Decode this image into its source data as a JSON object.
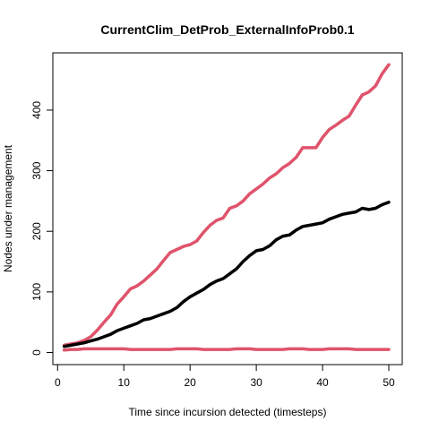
{
  "chart_data": {
    "type": "line",
    "title": "CurrentClim_DetProb_ExternalInfoProb0.1",
    "xlabel": "Time since incursion detected (timesteps)",
    "ylabel": "Nodes under management",
    "xlim": [
      1,
      50
    ],
    "ylim": [
      0,
      475
    ],
    "xticks": [
      0,
      10,
      20,
      30,
      40,
      50
    ],
    "yticks": [
      0,
      100,
      200,
      300,
      400
    ],
    "grid": false,
    "legend": "none",
    "x": [
      1,
      2,
      3,
      4,
      5,
      6,
      7,
      8,
      9,
      10,
      11,
      12,
      13,
      14,
      15,
      16,
      17,
      18,
      19,
      20,
      21,
      22,
      23,
      24,
      25,
      26,
      27,
      28,
      29,
      30,
      31,
      32,
      33,
      34,
      35,
      36,
      37,
      38,
      39,
      40,
      41,
      42,
      43,
      44,
      45,
      46,
      47,
      48,
      49,
      50
    ],
    "series": [
      {
        "color": "#DF536B",
        "values": [
          12,
          14,
          16,
          20,
          26,
          37,
          50,
          62,
          80,
          92,
          105,
          110,
          118,
          128,
          138,
          152,
          165,
          170,
          175,
          178,
          184,
          198,
          210,
          218,
          222,
          238,
          242,
          250,
          262,
          270,
          278,
          288,
          295,
          305,
          312,
          322,
          338,
          338,
          338,
          355,
          368,
          375,
          383,
          390,
          408,
          425,
          430,
          440,
          460,
          475
        ]
      },
      {
        "color": "#000000",
        "values": [
          10,
          12,
          14,
          16,
          19,
          22,
          26,
          30,
          36,
          40,
          44,
          48,
          54,
          56,
          60,
          64,
          68,
          74,
          84,
          92,
          98,
          104,
          112,
          118,
          122,
          130,
          138,
          150,
          160,
          168,
          170,
          176,
          186,
          192,
          194,
          202,
          208,
          210,
          212,
          214,
          220,
          224,
          228,
          230,
          232,
          238,
          236,
          238,
          244,
          248
        ]
      },
      {
        "color": "#DF536B",
        "values": [
          4,
          5,
          5,
          6,
          6,
          6,
          6,
          6,
          6,
          6,
          5,
          5,
          5,
          5,
          5,
          5,
          5,
          6,
          6,
          6,
          6,
          5,
          5,
          5,
          5,
          5,
          6,
          6,
          6,
          5,
          5,
          5,
          5,
          5,
          6,
          6,
          6,
          5,
          5,
          5,
          6,
          6,
          6,
          6,
          5,
          5,
          5,
          5,
          5,
          5
        ]
      }
    ]
  }
}
